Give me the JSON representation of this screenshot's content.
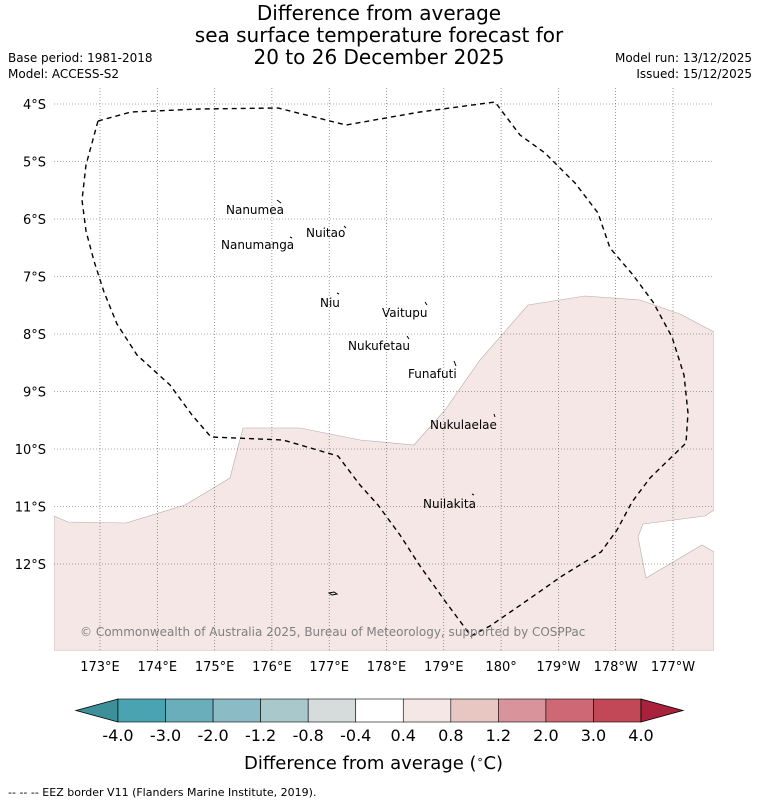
{
  "title": {
    "line1": "Difference from average",
    "line2": "sea surface temperature forecast for",
    "line3": "20 to 26 December 2025"
  },
  "meta": {
    "base_period": "Base period: 1981-2018",
    "model": "Model: ACCESS-S2",
    "model_run": "Model run: 13/12/2025",
    "issued": "Issued: 15/12/2025"
  },
  "map": {
    "lat_labels": [
      "4°S",
      "5°S",
      "6°S",
      "7°S",
      "8°S",
      "9°S",
      "10°S",
      "11°S",
      "12°S"
    ],
    "lon_labels": [
      "173°E",
      "174°E",
      "175°E",
      "176°E",
      "177°E",
      "178°E",
      "179°E",
      "180°",
      "179°W",
      "178°W",
      "177°W"
    ],
    "places": [
      "Nanumea",
      "Nuitao",
      "Nanumanga",
      "Niu",
      "Vaitupu",
      "Nukufetau",
      "Funafuti",
      "Nukulaelae",
      "Nuilakita"
    ],
    "copyright": "© Commonwealth of Australia 2025, Bureau of Meteorology, supported by COSPPac",
    "anomaly_fill_color": "#f5e7e6",
    "eez_line_style": "dashed"
  },
  "colorbar": {
    "ticks": [
      "-4.0",
      "-3.0",
      "-2.0",
      "-1.2",
      "-0.8",
      "-0.4",
      "0.4",
      "0.8",
      "1.2",
      "2.0",
      "3.0",
      "4.0"
    ],
    "colors": [
      "#3d8f9a",
      "#4aa3b1",
      "#6aaebb",
      "#8bbbc4",
      "#a8c8cb",
      "#d5dcdb",
      "#ffffff",
      "#f5e7e6",
      "#e8c7c3",
      "#d9939a",
      "#cd6874",
      "#c24857",
      "#a8223c"
    ],
    "title": "Difference from average (",
    "unit_degree": "∘",
    "unit_letter": "C)"
  },
  "footer": "--  --  -- EEZ border V11 (Flanders Marine Institute, 2019)."
}
